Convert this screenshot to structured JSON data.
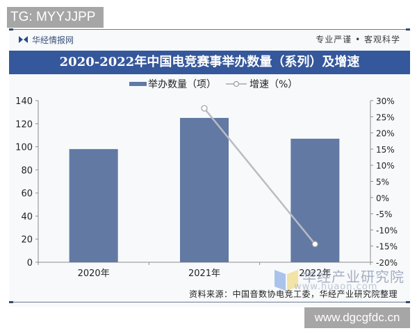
{
  "watermark_top": "TG: MYYJJPP",
  "watermark_bottom": "www.dgcgfdc.cn",
  "header": {
    "brand": "华经情报网",
    "slogan": "专业严谨 • 客观科学",
    "title": "2020-2022年中国电竞赛事举办数量（系列）及增速"
  },
  "legend": {
    "bar_label": "举办数量（项）",
    "line_label": "增速（%）"
  },
  "axes": {
    "left_ticks": [
      "140",
      "120",
      "100",
      "80",
      "60",
      "40",
      "20",
      "0"
    ],
    "right_ticks": [
      "30%",
      "25%",
      "20%",
      "15%",
      "10%",
      "5%",
      "0%",
      "-5%",
      "-10%",
      "-15%",
      "-20%"
    ],
    "categories": [
      "2020年",
      "2021年",
      "2022年"
    ]
  },
  "source": "资料来源：中国音数协电竞工委，华经产业研究院整理",
  "overlay_watermark": {
    "name": "华经产业研究院",
    "url": "www.huaon.com"
  },
  "colors": {
    "bar": "#6279a4",
    "line": "#b9bcc2",
    "title_bar": "#35579b"
  },
  "chart_data": {
    "type": "bar",
    "title": "2020-2022年中国电竞赛事举办数量（系列）及增速",
    "categories": [
      "2020年",
      "2021年",
      "2022年"
    ],
    "series": [
      {
        "name": "举办数量（项）",
        "type": "bar",
        "axis": "left",
        "values": [
          98,
          125,
          107
        ]
      },
      {
        "name": "增速（%）",
        "type": "line",
        "axis": "right",
        "values": [
          null,
          27.6,
          -14.4
        ]
      }
    ],
    "xlabel": "",
    "ylabel": "",
    "ylim": [
      0,
      140
    ],
    "y2lim": [
      -20,
      30
    ],
    "y_ticks": [
      0,
      20,
      40,
      60,
      80,
      100,
      120,
      140
    ],
    "y2_ticks": [
      -20,
      -15,
      -10,
      -5,
      0,
      5,
      10,
      15,
      20,
      25,
      30
    ],
    "grid": false,
    "legend_position": "top"
  }
}
